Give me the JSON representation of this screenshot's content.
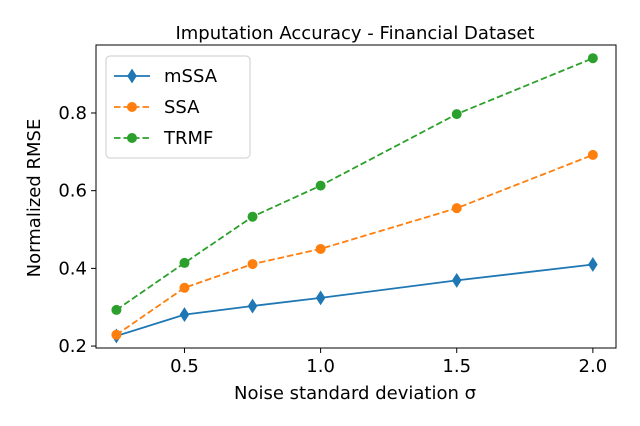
{
  "chart_data": {
    "type": "line",
    "title": "Imputation Accuracy - Financial Dataset",
    "xlabel": "Noise standard deviation σ",
    "ylabel": "Normalized RMSE",
    "x": [
      0.25,
      0.5,
      0.75,
      1.0,
      1.5,
      2.0
    ],
    "xticks": [
      "0.5",
      "1.0",
      "1.5",
      "2.0"
    ],
    "yticks": [
      "0.2",
      "0.4",
      "0.6",
      "0.8"
    ],
    "xlim": [
      0.175,
      2.085
    ],
    "ylim": [
      0.195,
      0.975
    ],
    "grid": false,
    "legend_position": "upper-left",
    "series": [
      {
        "name": "mSSA",
        "color": "#1f77b4",
        "linestyle": "solid",
        "marker": "thin-diamond",
        "values": [
          0.226,
          0.281,
          0.303,
          0.324,
          0.369,
          0.41
        ]
      },
      {
        "name": "SSA",
        "color": "#ff7f0e",
        "linestyle": "dashed",
        "marker": "circle",
        "values": [
          0.229,
          0.35,
          0.411,
          0.45,
          0.555,
          0.692
        ]
      },
      {
        "name": "TRMF",
        "color": "#2ca02c",
        "linestyle": "dashed",
        "marker": "circle",
        "values": [
          0.293,
          0.414,
          0.533,
          0.613,
          0.797,
          0.941
        ]
      }
    ]
  }
}
